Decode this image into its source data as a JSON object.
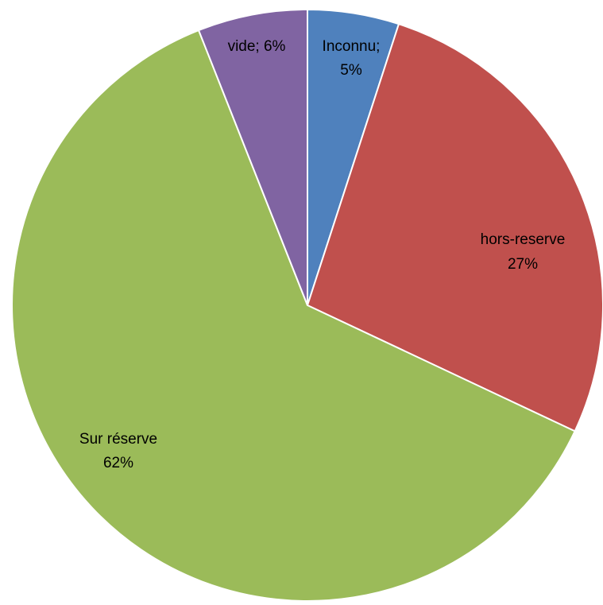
{
  "chart_data": {
    "type": "pie",
    "title": "",
    "slices": [
      {
        "name": "Inconnu",
        "value": 5,
        "label_name": "Inconnu;",
        "label_value": "5%",
        "color": "#4F81BD"
      },
      {
        "name": "hors-reserve",
        "value": 27,
        "label_name": "hors-reserve",
        "label_value": "27%",
        "color": "#C0504D"
      },
      {
        "name": "Sur réserve",
        "value": 62,
        "label_name": "Sur réserve",
        "label_value": "62%",
        "color": "#9BBB59"
      },
      {
        "name": "vide",
        "value": 6,
        "label_name": "vide; 6%",
        "label_value": "",
        "color": "#8064A2"
      }
    ],
    "start_angle_deg": 0,
    "direction": "clockwise",
    "slice_border_color": "#FFFFFF",
    "legend": "none"
  }
}
